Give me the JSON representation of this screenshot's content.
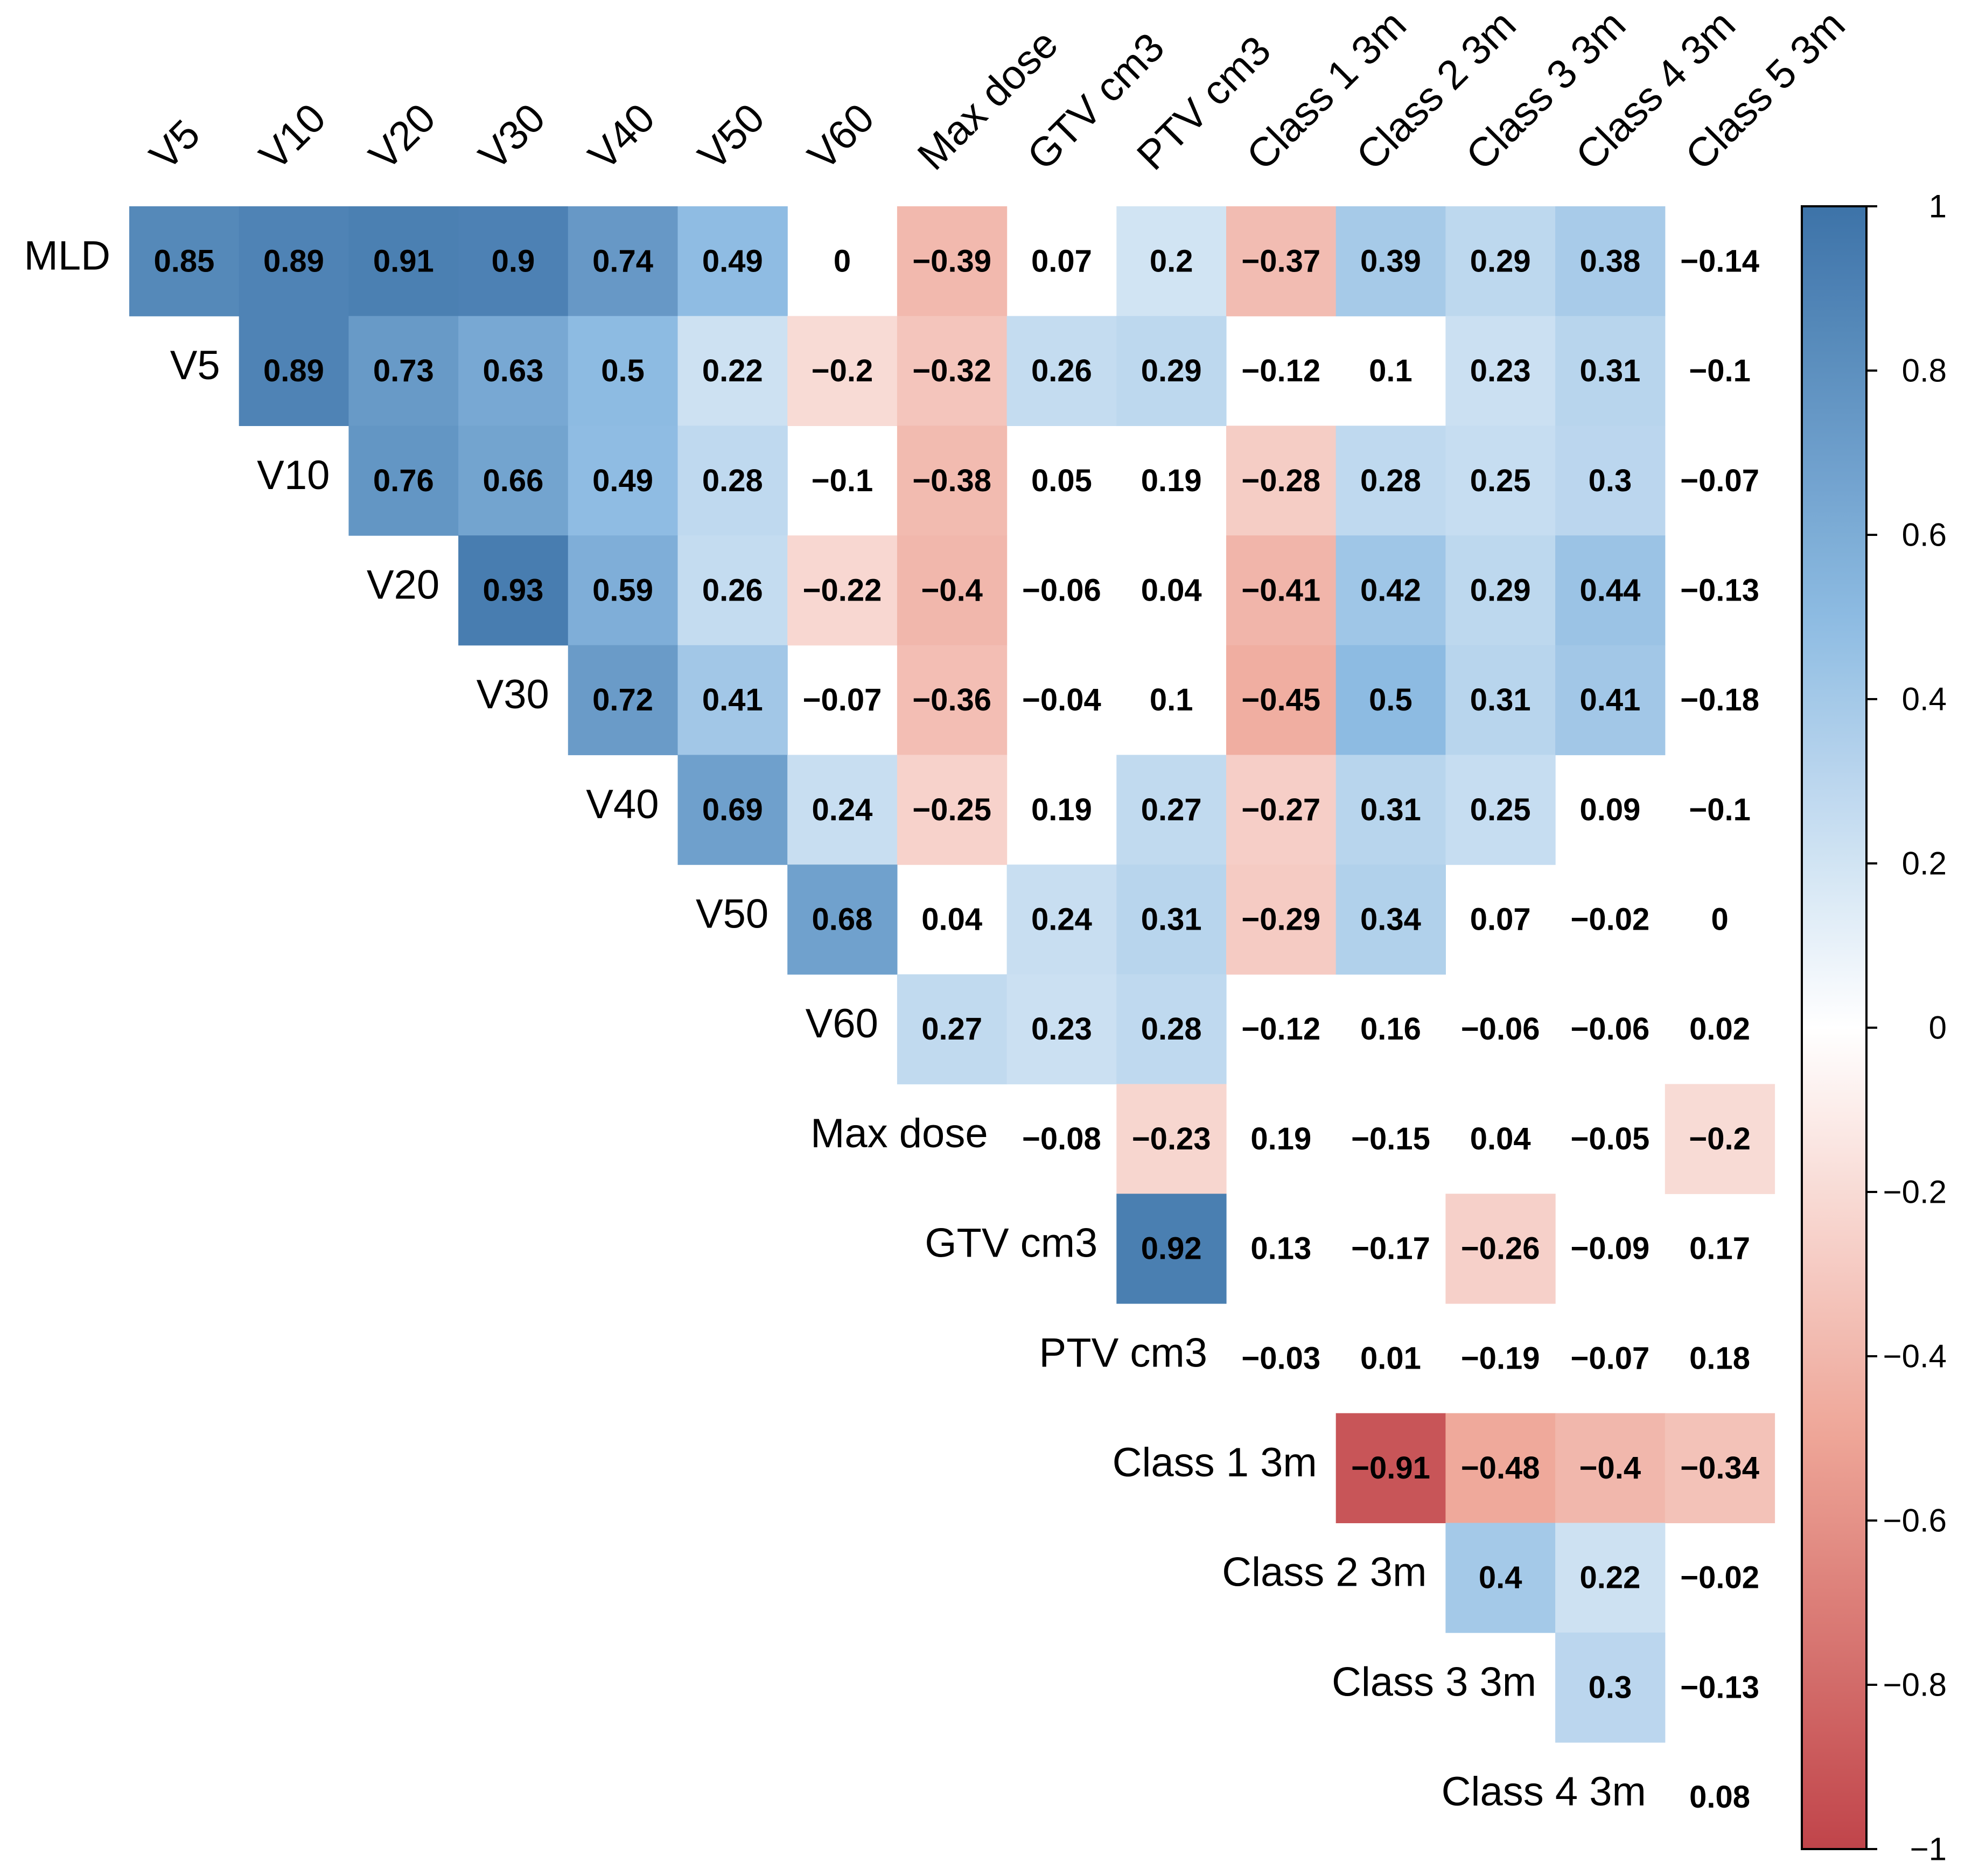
{
  "chart_data": {
    "type": "heatmap",
    "title": "",
    "columns": [
      "V5",
      "V10",
      "V20",
      "V30",
      "V40",
      "V50",
      "V60",
      "Max dose",
      "GTV cm3",
      "PTV cm3",
      "Class 1 3m",
      "Class 2 3m",
      "Class 3 3m",
      "Class 4 3m",
      "Class 5 3m"
    ],
    "rows": [
      "MLD",
      "V5",
      "V10",
      "V20",
      "V30",
      "V40",
      "V50",
      "V60",
      "Max dose",
      "GTV cm3",
      "PTV cm3",
      "Class 1 3m",
      "Class 2 3m",
      "Class 3 3m",
      "Class 4 3m"
    ],
    "matrix": [
      [
        0.85,
        0.89,
        0.91,
        0.9,
        0.74,
        0.49,
        0,
        -0.39,
        0.07,
        0.2,
        -0.37,
        0.39,
        0.29,
        0.38,
        -0.14
      ],
      [
        null,
        0.89,
        0.73,
        0.63,
        0.5,
        0.22,
        -0.2,
        -0.32,
        0.26,
        0.29,
        -0.12,
        0.1,
        0.23,
        0.31,
        -0.1
      ],
      [
        null,
        null,
        0.76,
        0.66,
        0.49,
        0.28,
        -0.1,
        -0.38,
        0.05,
        0.19,
        -0.28,
        0.28,
        0.25,
        0.3,
        -0.07
      ],
      [
        null,
        null,
        null,
        0.93,
        0.59,
        0.26,
        -0.22,
        -0.4,
        -0.06,
        0.04,
        -0.41,
        0.42,
        0.29,
        0.44,
        -0.13
      ],
      [
        null,
        null,
        null,
        null,
        0.72,
        0.41,
        -0.07,
        -0.36,
        -0.04,
        0.1,
        -0.45,
        0.5,
        0.31,
        0.41,
        -0.18
      ],
      [
        null,
        null,
        null,
        null,
        null,
        0.69,
        0.24,
        -0.25,
        0.19,
        0.27,
        -0.27,
        0.31,
        0.25,
        0.09,
        -0.1
      ],
      [
        null,
        null,
        null,
        null,
        null,
        null,
        0.68,
        0.04,
        0.24,
        0.31,
        -0.29,
        0.34,
        0.07,
        -0.02,
        0
      ],
      [
        null,
        null,
        null,
        null,
        null,
        null,
        null,
        0.27,
        0.23,
        0.28,
        -0.12,
        0.16,
        -0.06,
        -0.06,
        0.02
      ],
      [
        null,
        null,
        null,
        null,
        null,
        null,
        null,
        null,
        -0.08,
        -0.23,
        0.19,
        -0.15,
        0.04,
        -0.05,
        -0.2
      ],
      [
        null,
        null,
        null,
        null,
        null,
        null,
        null,
        null,
        null,
        0.92,
        0.13,
        -0.17,
        -0.26,
        -0.09,
        0.17
      ],
      [
        null,
        null,
        null,
        null,
        null,
        null,
        null,
        null,
        null,
        null,
        -0.03,
        0.01,
        -0.19,
        -0.07,
        0.18
      ],
      [
        null,
        null,
        null,
        null,
        null,
        null,
        null,
        null,
        null,
        null,
        null,
        -0.91,
        -0.48,
        -0.4,
        -0.34
      ],
      [
        null,
        null,
        null,
        null,
        null,
        null,
        null,
        null,
        null,
        null,
        null,
        null,
        0.4,
        0.22,
        -0.02
      ],
      [
        null,
        null,
        null,
        null,
        null,
        null,
        null,
        null,
        null,
        null,
        null,
        null,
        null,
        0.3,
        -0.13
      ],
      [
        null,
        null,
        null,
        null,
        null,
        null,
        null,
        null,
        null,
        null,
        null,
        null,
        null,
        null,
        0.08
      ]
    ],
    "blank_threshold": 0.2,
    "color_range": [
      -1,
      1
    ],
    "legend_ticks": [
      1,
      0.8,
      0.6,
      0.4,
      0.2,
      0,
      -0.2,
      -0.4,
      -0.6,
      -0.8,
      -1
    ],
    "colors": {
      "positive": "#3D73A8",
      "mid_positive": "#8DBBE2",
      "zero": "#FFFFFF",
      "mid_negative": "#EEA597",
      "negative": "#C0444A"
    }
  }
}
